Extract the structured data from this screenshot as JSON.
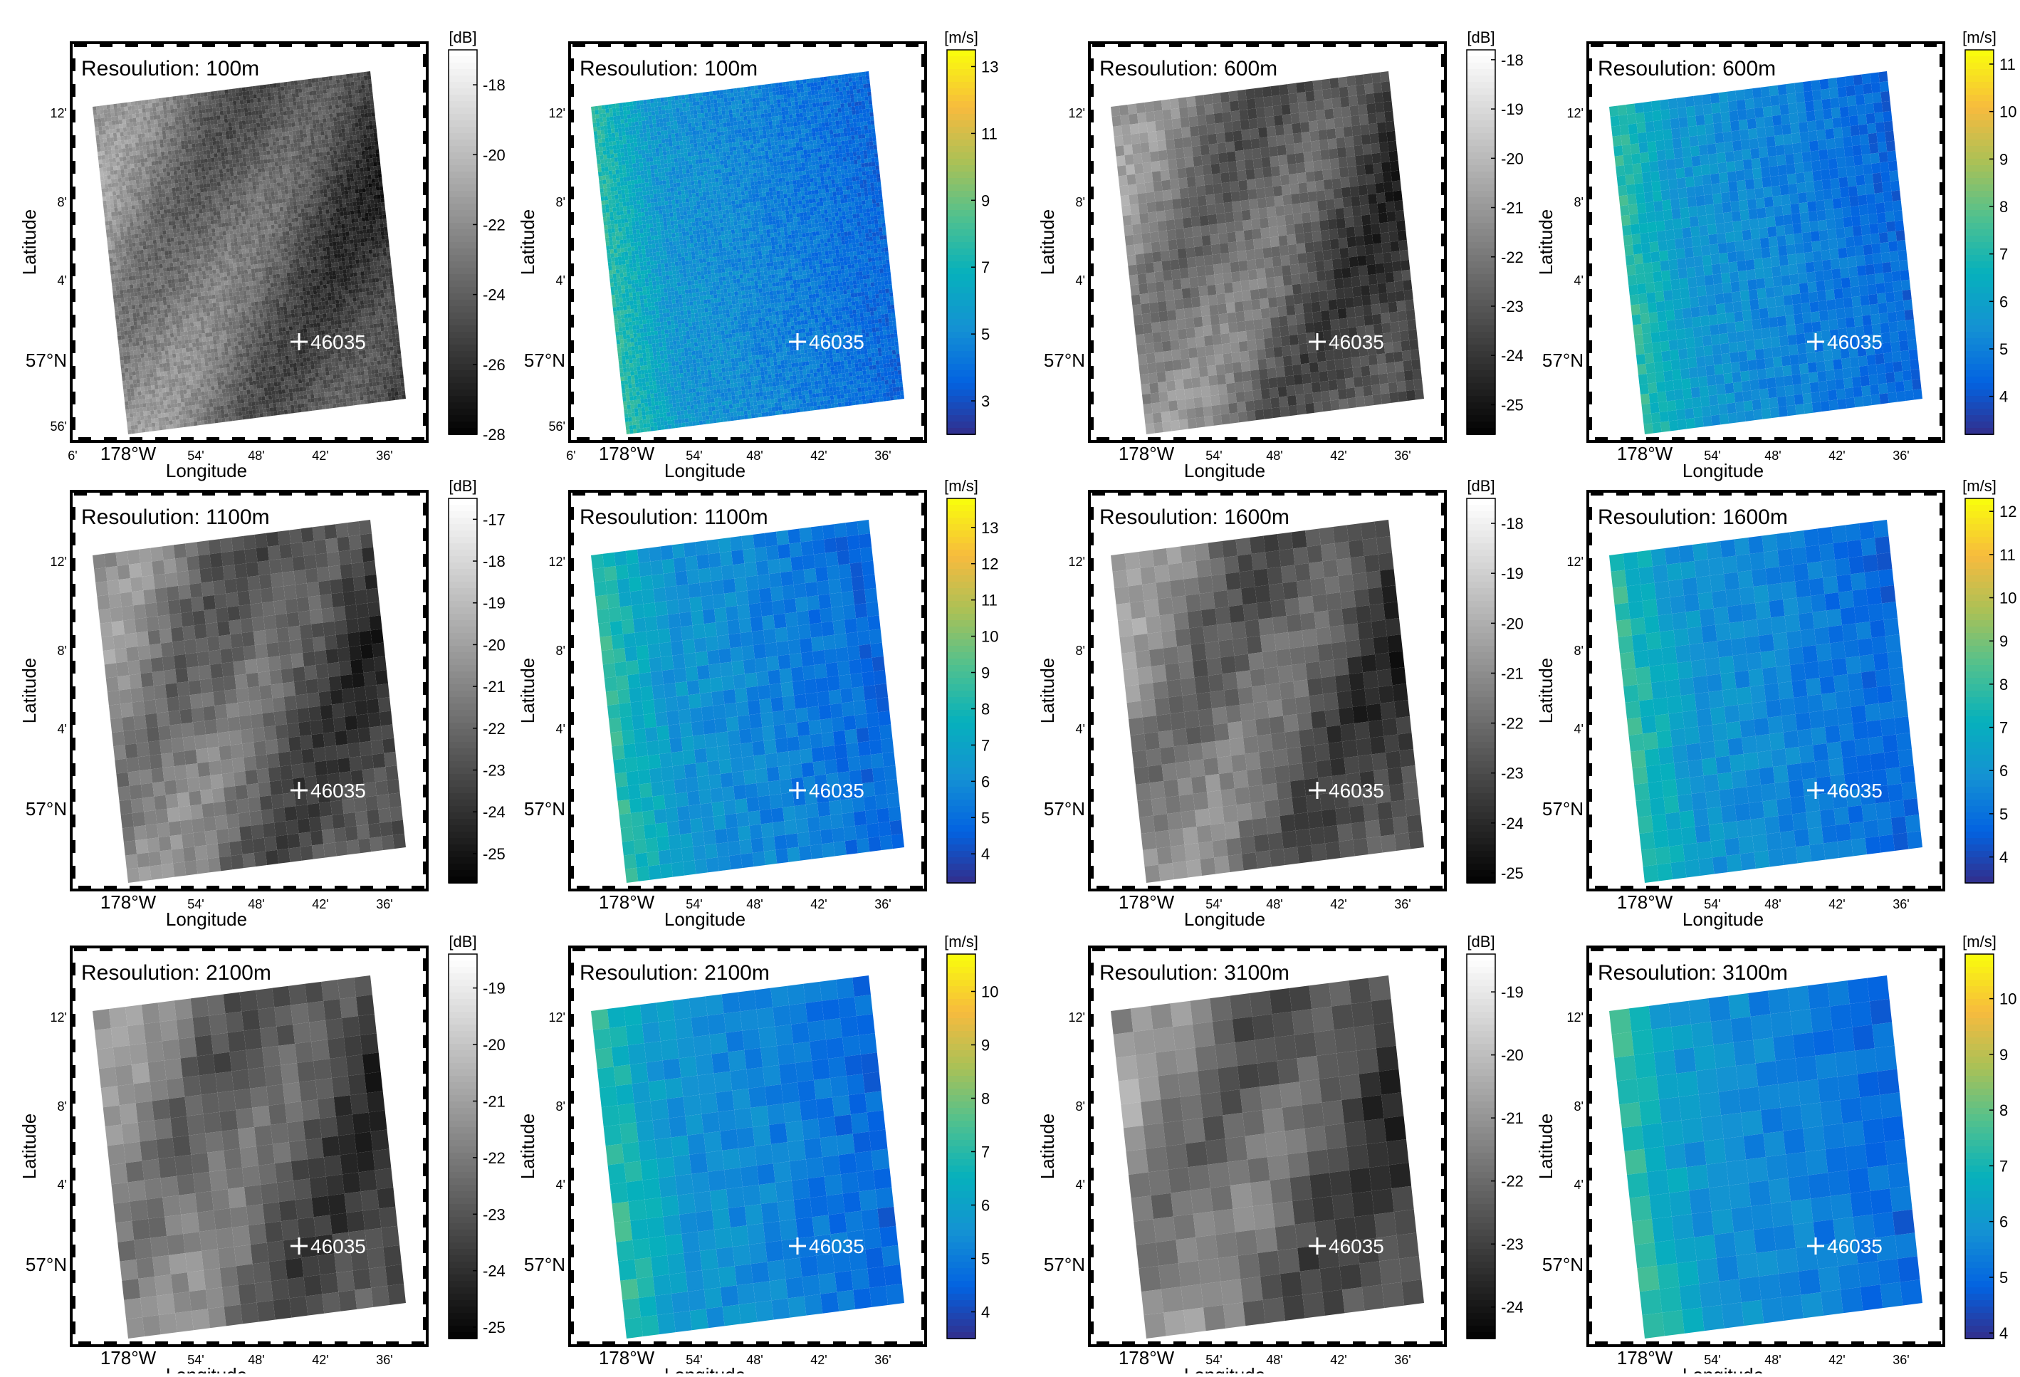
{
  "chart_data": [
    {
      "type": "heatmap",
      "title": "Resoulution: 100m",
      "colorbar_unit": "[dB]",
      "colormap": "gray",
      "colorbar_ticks": [
        "-18",
        "-20",
        "-22",
        "-24",
        "-26",
        "-28"
      ],
      "range": [
        -28,
        -17
      ],
      "buoy_label": "46035",
      "ylabel": "Latitude",
      "xlabel": "Longitude",
      "lat_ticks": [
        "12'",
        "8'",
        "4'",
        "57°N",
        "56'"
      ],
      "lon_ticks": [
        "6'",
        "178°W",
        "54'",
        "48'",
        "42'",
        "36'"
      ]
    },
    {
      "type": "heatmap",
      "title": "Resoulution: 100m",
      "colorbar_unit": "[m/s]",
      "colormap": "parula",
      "colorbar_ticks": [
        "13",
        "11",
        "9",
        "7",
        "5",
        "3"
      ],
      "range": [
        2,
        13.5
      ],
      "buoy_label": "46035",
      "ylabel": "Latitude",
      "xlabel": "Longitude",
      "lat_ticks": [
        "12'",
        "8'",
        "4'",
        "57°N",
        "56'"
      ],
      "lon_ticks": [
        "6'",
        "178°W",
        "54'",
        "48'",
        "42'",
        "36'"
      ]
    },
    {
      "type": "heatmap",
      "title": "Resoulution: 600m",
      "colorbar_unit": "[dB]",
      "colormap": "gray",
      "colorbar_ticks": [
        "-18",
        "-19",
        "-20",
        "-21",
        "-22",
        "-23",
        "-24",
        "-25"
      ],
      "range": [
        -25.6,
        -17.8
      ],
      "buoy_label": "46035",
      "ylabel": "Latitude",
      "xlabel": "Longitude",
      "lat_ticks": [
        "12'",
        "8'",
        "4'",
        "57°N"
      ],
      "lon_ticks": [
        "178°W",
        "54'",
        "48'",
        "42'",
        "36'"
      ]
    },
    {
      "type": "heatmap",
      "title": "Resoulution: 600m",
      "colorbar_unit": "[m/s]",
      "colormap": "parula",
      "colorbar_ticks": [
        "11",
        "10",
        "9",
        "8",
        "7",
        "6",
        "5",
        "4"
      ],
      "range": [
        3.2,
        11.3
      ],
      "buoy_label": "46035",
      "ylabel": "Latitude",
      "xlabel": "Longitude",
      "lat_ticks": [
        "12'",
        "8'",
        "4'",
        "57°N"
      ],
      "lon_ticks": [
        "178°W",
        "54'",
        "48'",
        "42'",
        "36'"
      ]
    },
    {
      "type": "heatmap",
      "title": "Resoulution: 1100m",
      "colorbar_unit": "[dB]",
      "colormap": "gray",
      "colorbar_ticks": [
        "-17",
        "-18",
        "-19",
        "-20",
        "-21",
        "-22",
        "-23",
        "-24",
        "-25"
      ],
      "range": [
        -25.7,
        -16.5
      ],
      "buoy_label": "46035",
      "ylabel": "Latitude",
      "xlabel": "Longitude",
      "lat_ticks": [
        "12'",
        "8'",
        "4'",
        "57°N"
      ],
      "lon_ticks": [
        "178°W",
        "54'",
        "48'",
        "42'",
        "36'"
      ]
    },
    {
      "type": "heatmap",
      "title": "Resoulution: 1100m",
      "colorbar_unit": "[m/s]",
      "colormap": "parula",
      "colorbar_ticks": [
        "13",
        "12",
        "11",
        "10",
        "9",
        "8",
        "7",
        "6",
        "5",
        "4"
      ],
      "range": [
        3.2,
        13.8
      ],
      "buoy_label": "46035",
      "ylabel": "Latitude",
      "xlabel": "Longitude",
      "lat_ticks": [
        "12'",
        "8'",
        "4'",
        "57°N"
      ],
      "lon_ticks": [
        "178°W",
        "54'",
        "48'",
        "42'",
        "36'"
      ]
    },
    {
      "type": "heatmap",
      "title": "Resoulution: 1600m",
      "colorbar_unit": "[dB]",
      "colormap": "gray",
      "colorbar_ticks": [
        "-18",
        "-19",
        "-20",
        "-21",
        "-22",
        "-23",
        "-24",
        "-25"
      ],
      "range": [
        -25.2,
        -17.5
      ],
      "buoy_label": "46035",
      "ylabel": "Latitude",
      "xlabel": "Longitude",
      "lat_ticks": [
        "12'",
        "8'",
        "4'",
        "57°N"
      ],
      "lon_ticks": [
        "178°W",
        "54'",
        "48'",
        "42'",
        "36'"
      ]
    },
    {
      "type": "heatmap",
      "title": "Resoulution: 1600m",
      "colorbar_unit": "[m/s]",
      "colormap": "parula",
      "colorbar_ticks": [
        "12",
        "11",
        "10",
        "9",
        "8",
        "7",
        "6",
        "5",
        "4"
      ],
      "range": [
        3.4,
        12.3
      ],
      "buoy_label": "46035",
      "ylabel": "Latitude",
      "xlabel": "Longitude",
      "lat_ticks": [
        "12'",
        "8'",
        "4'",
        "57°N"
      ],
      "lon_ticks": [
        "178°W",
        "54'",
        "48'",
        "42'",
        "36'"
      ]
    },
    {
      "type": "heatmap",
      "title": "Resoulution: 2100m",
      "colorbar_unit": "[dB]",
      "colormap": "gray",
      "colorbar_ticks": [
        "-19",
        "-20",
        "-21",
        "-22",
        "-23",
        "-24",
        "-25"
      ],
      "range": [
        -25.2,
        -18.4
      ],
      "buoy_label": "46035",
      "ylabel": "Latitude",
      "xlabel": "Longitude",
      "lat_ticks": [
        "12'",
        "8'",
        "4'",
        "57°N"
      ],
      "lon_ticks": [
        "178°W",
        "54'",
        "48'",
        "42'",
        "36'"
      ]
    },
    {
      "type": "heatmap",
      "title": "Resoulution: 2100m",
      "colorbar_unit": "[m/s]",
      "colormap": "parula",
      "colorbar_ticks": [
        "10",
        "9",
        "8",
        "7",
        "6",
        "5",
        "4"
      ],
      "range": [
        3.5,
        10.7
      ],
      "buoy_label": "46035",
      "ylabel": "Latitude",
      "xlabel": "Longitude",
      "lat_ticks": [
        "12'",
        "8'",
        "4'",
        "57°N"
      ],
      "lon_ticks": [
        "178°W",
        "54'",
        "48'",
        "42'",
        "36'"
      ]
    },
    {
      "type": "heatmap",
      "title": "Resoulution: 3100m",
      "colorbar_unit": "[dB]",
      "colormap": "gray",
      "colorbar_ticks": [
        "-19",
        "-20",
        "-21",
        "-22",
        "-23",
        "-24"
      ],
      "range": [
        -24.5,
        -18.4
      ],
      "buoy_label": "46035",
      "ylabel": "Latitude",
      "xlabel": "Longitude",
      "lat_ticks": [
        "12'",
        "8'",
        "4'",
        "57°N"
      ],
      "lon_ticks": [
        "178°W",
        "54'",
        "48'",
        "42'",
        "36'"
      ]
    },
    {
      "type": "heatmap",
      "title": "Resoulution: 3100m",
      "colorbar_unit": "[m/s]",
      "colormap": "parula",
      "colorbar_ticks": [
        "10",
        "9",
        "8",
        "7",
        "6",
        "5",
        "4"
      ],
      "range": [
        3.9,
        10.8
      ],
      "buoy_label": "46035",
      "ylabel": "Latitude",
      "xlabel": "Longitude",
      "lat_ticks": [
        "12'",
        "8'",
        "4'",
        "57°N"
      ],
      "lon_ticks": [
        "178°W",
        "54'",
        "48'",
        "42'",
        "36'"
      ]
    }
  ]
}
